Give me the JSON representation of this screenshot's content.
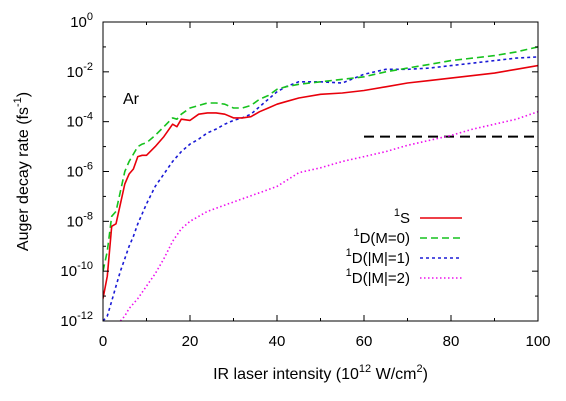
{
  "chart_data": {
    "type": "line",
    "title": "",
    "xlabel": {
      "base": "IR laser intensity (10",
      "sup": "12",
      "mid": " W/cm",
      "sup2": "2",
      "end": ")"
    },
    "ylabel": {
      "base": "Auger decay rate (fs",
      "sup": "-1",
      "end": ")"
    },
    "annotation": "Ar",
    "xlim": [
      0,
      100
    ],
    "ylim_log10": [
      -12,
      0
    ],
    "y_scale": "log",
    "grid": false,
    "legend_position": "bottom-right",
    "x_ticks": [
      "0",
      "20",
      "40",
      "60",
      "80",
      "100"
    ],
    "y_ticks": [
      {
        "base": "10",
        "exp": "0"
      },
      {
        "base": "10",
        "exp": "-2"
      },
      {
        "base": "10",
        "exp": "-4"
      },
      {
        "base": "10",
        "exp": "-6"
      },
      {
        "base": "10",
        "exp": "-8"
      },
      {
        "base": "10",
        "exp": "-10"
      },
      {
        "base": "10",
        "exp": "-12"
      }
    ],
    "series": [
      {
        "name_sup": "1",
        "name": "S",
        "color": "#e8000b",
        "dash": "solid",
        "x": [
          0,
          1,
          2,
          3,
          4,
          5,
          6,
          7,
          8,
          9,
          10,
          12,
          14,
          16,
          17,
          18,
          20,
          22,
          24,
          26,
          28,
          30,
          32,
          34,
          36,
          38,
          40,
          42,
          45,
          50,
          55,
          60,
          65,
          70,
          75,
          80,
          85,
          90,
          95,
          100
        ],
        "logy": [
          -11.1,
          -10.2,
          -8.2,
          -8.1,
          -7.3,
          -6.5,
          -6.1,
          -5.9,
          -5.4,
          -5.35,
          -5.35,
          -5.0,
          -4.6,
          -4.1,
          -4.2,
          -3.9,
          -3.95,
          -3.7,
          -3.65,
          -3.65,
          -3.7,
          -3.85,
          -3.85,
          -3.8,
          -3.6,
          -3.45,
          -3.3,
          -3.2,
          -3.05,
          -2.9,
          -2.85,
          -2.75,
          -2.6,
          -2.45,
          -2.35,
          -2.25,
          -2.15,
          -2.05,
          -1.9,
          -1.75
        ]
      },
      {
        "name_sup": "1",
        "name": "D(M=0)",
        "color": "#17c21e",
        "dash": "7,4",
        "x": [
          0,
          1,
          2,
          3,
          4,
          5,
          6,
          7,
          8,
          9,
          10,
          12,
          14,
          16,
          17,
          18,
          20,
          22,
          24,
          26,
          28,
          30,
          32,
          34,
          36,
          38,
          40,
          42,
          45,
          50,
          55,
          60,
          65,
          70,
          75,
          80,
          85,
          90,
          95,
          100
        ],
        "logy": [
          -10.0,
          -9.2,
          -7.8,
          -7.6,
          -6.8,
          -6.0,
          -5.6,
          -5.3,
          -5.0,
          -4.9,
          -4.85,
          -4.55,
          -4.2,
          -3.85,
          -3.9,
          -3.7,
          -3.45,
          -3.35,
          -3.25,
          -3.25,
          -3.3,
          -3.45,
          -3.45,
          -3.35,
          -3.1,
          -2.95,
          -2.7,
          -2.6,
          -2.5,
          -2.4,
          -2.3,
          -2.2,
          -2.0,
          -1.85,
          -1.7,
          -1.55,
          -1.45,
          -1.35,
          -1.2,
          -1.0
        ]
      },
      {
        "name_sup": "1",
        "name": "D(|M|=1)",
        "color": "#1a1ad6",
        "dash": "3,3",
        "x": [
          0,
          1,
          2,
          3,
          4,
          5,
          6,
          7,
          8,
          10,
          12,
          14,
          16,
          18,
          20,
          22,
          24,
          26,
          28,
          30,
          32,
          34,
          36,
          38,
          40,
          42,
          45,
          50,
          55,
          60,
          65,
          70,
          75,
          80,
          85,
          90,
          95,
          100
        ],
        "logy": [
          -12.0,
          -11.8,
          -11.2,
          -10.6,
          -10.0,
          -9.5,
          -9.0,
          -8.6,
          -8.1,
          -7.3,
          -6.6,
          -6.1,
          -5.6,
          -5.2,
          -4.9,
          -4.7,
          -4.45,
          -4.3,
          -4.1,
          -3.95,
          -3.85,
          -3.7,
          -3.4,
          -3.1,
          -2.8,
          -2.6,
          -2.4,
          -2.4,
          -2.45,
          -2.1,
          -1.9,
          -1.9,
          -1.85,
          -1.75,
          -1.65,
          -1.55,
          -1.45,
          -1.4
        ]
      },
      {
        "name_sup": "1",
        "name": "D(|M|=2)",
        "color": "#ee10ee",
        "dash": "1.5,2.5",
        "x": [
          4,
          5,
          6,
          8,
          10,
          12,
          14,
          16,
          18,
          20,
          24,
          28,
          32,
          36,
          40,
          45,
          50,
          55,
          60,
          65,
          70,
          75,
          80,
          85,
          90,
          95,
          100
        ],
        "logy": [
          -12.0,
          -11.8,
          -11.5,
          -11.1,
          -10.6,
          -10.1,
          -9.5,
          -8.8,
          -8.3,
          -8.0,
          -7.6,
          -7.35,
          -7.1,
          -6.85,
          -6.6,
          -6.05,
          -5.85,
          -5.6,
          -5.4,
          -5.2,
          -4.95,
          -4.75,
          -4.55,
          -4.3,
          -4.1,
          -3.9,
          -3.6
        ]
      }
    ],
    "reference_line": {
      "color": "#000000",
      "dash": "10,6",
      "x": [
        60,
        100
      ],
      "logy": [
        -4.6,
        -4.6
      ]
    }
  }
}
